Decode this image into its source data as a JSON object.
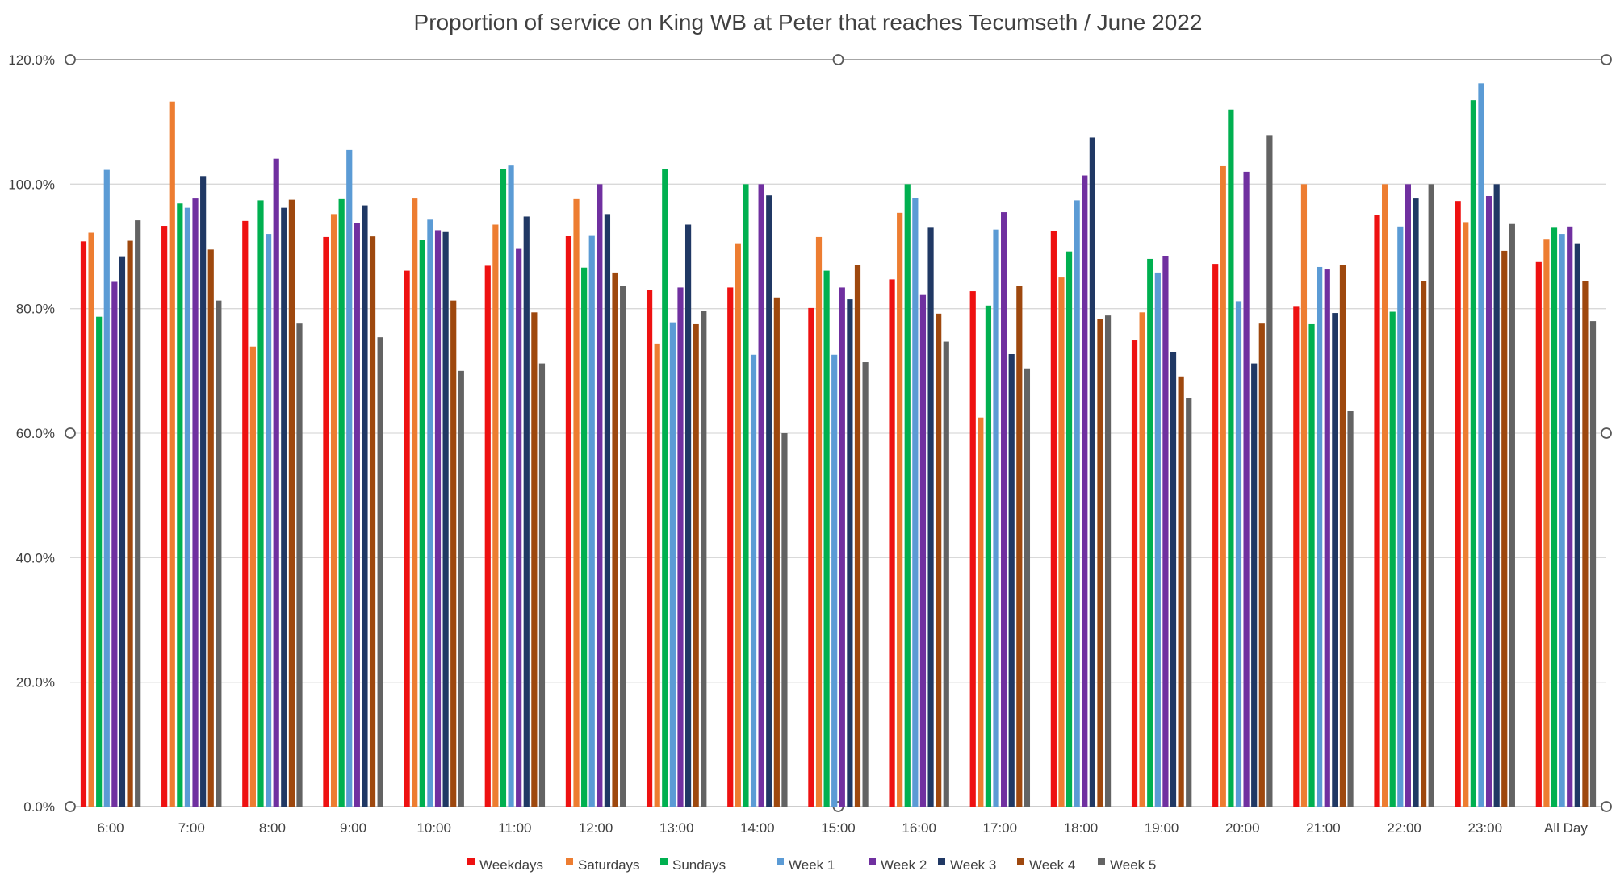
{
  "chart_data": {
    "type": "bar",
    "title": "Proportion of service on King WB at Peter that reaches Tecumseth / June 2022",
    "xlabel": "",
    "ylabel": "",
    "ylim": [
      0,
      120
    ],
    "yticks": [
      "0.0%",
      "20.0%",
      "40.0%",
      "60.0%",
      "80.0%",
      "100.0%",
      "120.0%"
    ],
    "grid": true,
    "legend_position": "bottom",
    "categories": [
      "6:00",
      "7:00",
      "8:00",
      "9:00",
      "10:00",
      "11:00",
      "12:00",
      "13:00",
      "14:00",
      "15:00",
      "16:00",
      "17:00",
      "18:00",
      "19:00",
      "20:00",
      "21:00",
      "22:00",
      "23:00",
      "All Day"
    ],
    "series": [
      {
        "name": "Weekdays",
        "color": "#EE1111",
        "values": [
          90.8,
          93.3,
          94.1,
          91.5,
          86.1,
          86.9,
          91.7,
          83.0,
          83.4,
          80.1,
          84.7,
          82.8,
          92.4,
          74.9,
          87.2,
          80.3,
          95.0,
          97.3,
          87.5
        ]
      },
      {
        "name": "Saturdays",
        "color": "#ED7D31",
        "values": [
          92.2,
          113.3,
          73.9,
          95.2,
          97.7,
          93.5,
          97.6,
          74.4,
          90.5,
          91.5,
          95.4,
          62.5,
          85.0,
          79.4,
          102.9,
          100.0,
          100.0,
          93.9,
          91.2
        ]
      },
      {
        "name": "Sundays",
        "color": "#00B050",
        "values": [
          78.7,
          96.9,
          97.4,
          97.6,
          91.1,
          102.5,
          86.6,
          102.4,
          100.0,
          86.1,
          100.0,
          80.5,
          89.2,
          88.0,
          112.0,
          77.5,
          79.5,
          113.5,
          93.0
        ]
      },
      {
        "name": "Week 1",
        "color": "#5B9BD5",
        "values": [
          102.3,
          96.2,
          92.0,
          105.5,
          94.3,
          103.0,
          91.8,
          77.8,
          72.6,
          72.6,
          97.8,
          92.7,
          97.4,
          85.8,
          81.2,
          86.7,
          93.2,
          116.2,
          92.0
        ]
      },
      {
        "name": "Week 2",
        "color": "#7030A0",
        "values": [
          84.3,
          97.7,
          104.1,
          93.8,
          92.6,
          89.6,
          100.0,
          83.4,
          100.0,
          83.4,
          82.2,
          95.5,
          101.4,
          88.5,
          102.0,
          86.3,
          100.0,
          98.1,
          93.2
        ]
      },
      {
        "name": "Week 3",
        "color": "#203864",
        "values": [
          88.3,
          101.3,
          96.2,
          96.6,
          92.3,
          94.8,
          95.2,
          93.5,
          98.2,
          81.5,
          93.0,
          72.7,
          107.5,
          73.0,
          71.2,
          79.3,
          97.7,
          100.0,
          90.5
        ]
      },
      {
        "name": "Week 4",
        "color": "#9E480E",
        "values": [
          90.9,
          89.5,
          97.5,
          91.6,
          81.3,
          79.4,
          85.8,
          77.5,
          81.8,
          87.0,
          79.2,
          83.6,
          78.3,
          69.1,
          77.6,
          87.0,
          84.4,
          89.3,
          84.4
        ]
      },
      {
        "name": "Week 5",
        "color": "#636363",
        "values": [
          94.2,
          81.3,
          77.6,
          75.4,
          70.0,
          71.2,
          83.7,
          79.6,
          60.0,
          71.4,
          74.7,
          70.4,
          78.9,
          65.6,
          107.9,
          63.5,
          100.0,
          93.6,
          78.0
        ]
      }
    ]
  }
}
